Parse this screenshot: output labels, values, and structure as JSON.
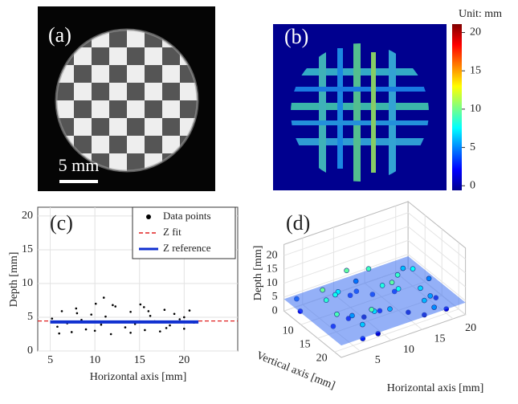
{
  "chart_data": [
    {
      "type": "image",
      "label": "(a)",
      "scale_bar": "5 mm"
    },
    {
      "type": "heatmap",
      "label": "(b)",
      "colorbar_title": "Unit: mm",
      "colormap": "jet",
      "clim": [
        -0.6,
        21.1
      ],
      "cticks": [
        0,
        5,
        10,
        15,
        20
      ]
    },
    {
      "type": "scatter",
      "label": "(c)",
      "xlabel": "Horizontal axis [mm]",
      "ylabel": "Depth [mm]",
      "xlim": [
        3.6,
        26
      ],
      "ylim": [
        0,
        21.3
      ],
      "xticks": [
        5,
        10,
        15,
        20
      ],
      "yticks": [
        0,
        5,
        10,
        15,
        20
      ],
      "grid": true,
      "legend": "upper right",
      "series": [
        {
          "name": "Data points",
          "color": "#000000",
          "style": "points",
          "x": [
            5.2,
            5.8,
            6.3,
            6.9,
            7.4,
            7.9,
            8.5,
            9.0,
            9.6,
            10.1,
            10.7,
            11.2,
            11.8,
            12.3,
            12.9,
            13.4,
            14.0,
            14.5,
            15.1,
            15.6,
            16.2,
            16.7,
            17.3,
            17.8,
            18.4,
            18.9,
            19.5,
            20.0,
            20.6,
            21.1,
            6.0,
            8.0,
            10.0,
            12.0,
            14.0,
            16.0,
            18.0,
            20.0,
            11.0,
            15.5
          ],
          "values": [
            4.8,
            3.6,
            5.9,
            4.1,
            2.8,
            6.3,
            4.6,
            3.2,
            5.4,
            7.0,
            3.9,
            5.1,
            2.5,
            6.6,
            4.3,
            3.5,
            5.8,
            4.0,
            6.9,
            3.1,
            5.2,
            4.4,
            2.9,
            6.1,
            3.8,
            5.5,
            4.7,
            3.3,
            6.0,
            4.2,
            2.6,
            5.6,
            3.0,
            6.8,
            2.7,
            5.9,
            3.4,
            5.0,
            7.9,
            6.5
          ]
        },
        {
          "name": "Z fit",
          "color": "#e02020",
          "style": "dashed",
          "x": [
            3.6,
            26
          ],
          "values": [
            4.45,
            4.45
          ]
        },
        {
          "name": "Z reference",
          "color": "#1030d0",
          "style": "solid",
          "x": [
            5,
            21.6
          ],
          "values": [
            4.3,
            4.3
          ]
        }
      ]
    },
    {
      "type": "scatter3d",
      "label": "(d)",
      "xlabel": "Horizontal axis [mm]",
      "ylabel": "Vertical axis [mm]",
      "zlabel": "Depth [mm]",
      "xlim": [
        2,
        22
      ],
      "ylim": [
        5,
        22
      ],
      "zlim": [
        0,
        24
      ],
      "xticks": [
        5,
        10,
        15,
        20
      ],
      "yticks": [
        10,
        15,
        20
      ],
      "zticks": [
        0,
        5,
        10,
        15,
        20
      ],
      "colormap": "jet",
      "clim": [
        -0.6,
        21.1
      ],
      "reference_plane": 4.3,
      "plane_color": "#3d6ff0",
      "x": [
        3,
        5,
        7,
        9,
        11,
        13,
        15,
        17,
        19,
        21,
        4,
        6,
        8,
        10,
        12,
        14,
        16,
        18,
        20,
        3.5,
        5.5,
        7.5,
        9.5,
        11.5,
        13.5,
        15.5,
        17.5,
        19.5,
        4.5,
        8.5,
        12.5,
        16.5,
        20.5,
        6.5,
        10.5,
        14.5,
        18.5,
        7,
        12,
        17
      ],
      "y": [
        8,
        12,
        16,
        20,
        7,
        11,
        15,
        19,
        9,
        13,
        17,
        21,
        10,
        14,
        18,
        8,
        12,
        16,
        20,
        6,
        10,
        14,
        18,
        9,
        13,
        17,
        21,
        11,
        15,
        19,
        7,
        12,
        16,
        20,
        9,
        14,
        18,
        11,
        15,
        19
      ],
      "z": [
        2.1,
        8.5,
        5.3,
        1.2,
        9.6,
        3.4,
        7.8,
        0.8,
        6.2,
        4.9,
        9.1,
        2.7,
        7.2,
        0.5,
        5.8,
        8.9,
        3.1,
        6.7,
        1.6,
        4.2,
        9.8,
        1.9,
        6.9,
        3.7,
        8.2,
        0.9,
        5.1,
        7.6,
        2.4,
        9.3,
        4.6,
        8.7,
        1.3,
        6.4,
        3.0,
        9.5,
        5.5,
        7.9,
        2.2,
        6.0
      ]
    }
  ]
}
